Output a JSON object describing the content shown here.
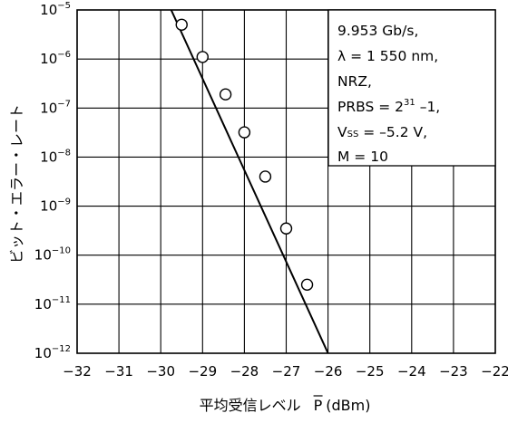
{
  "chart_data": {
    "type": "scatter",
    "xlabel": "平均受信レベル",
    "xlabel_symbol": "P",
    "xlabel_unit": "(dBm)",
    "ylabel": "ビット・エラー・レート",
    "xlim": [
      -32,
      -22
    ],
    "ylim_exponent": [
      -12,
      -5
    ],
    "y_scale": "log",
    "grid": true,
    "x_ticks": [
      "−32",
      "−31",
      "−30",
      "−29",
      "−28",
      "−27",
      "−26",
      "−25",
      "−24",
      "−23",
      "−22"
    ],
    "x_tick_values": [
      -32,
      -31,
      -30,
      -29,
      -28,
      -27,
      -26,
      -25,
      -24,
      -23,
      -22
    ],
    "y_tick_base": "10",
    "y_tick_exponents": [
      "−5",
      "−6",
      "−7",
      "−8",
      "−9",
      "−10",
      "−11",
      "−12"
    ],
    "y_tick_values": [
      -5,
      -6,
      -7,
      -8,
      -9,
      -10,
      -11,
      -12
    ],
    "series": [
      {
        "marker": "open-circle",
        "points": [
          {
            "x": -29.5,
            "y": 5e-06
          },
          {
            "x": -29.0,
            "y": 1.1e-06
          },
          {
            "x": -28.45,
            "y": 1.9e-07
          },
          {
            "x": -28.0,
            "y": 3.2e-08
          },
          {
            "x": -27.5,
            "y": 4e-09
          },
          {
            "x": -27.0,
            "y": 3.5e-10
          },
          {
            "x": -26.5,
            "y": 2.5e-11
          }
        ]
      }
    ],
    "fit_line": [
      {
        "x": -29.75,
        "y": 1e-05
      },
      {
        "x": -26.0,
        "y": 1e-12
      }
    ],
    "annotation": {
      "line1": "9.953 Gb/s,",
      "line2": "λ = 1 550 nm,",
      "line3": "NRZ,",
      "line4_base": "PRBS = 2",
      "line4_sup": "31",
      "line4_tail": " –1,",
      "line5_v": "V",
      "line5_sub": "SS",
      "line5_tail": " = –5.2 V,",
      "line6": "M = 10"
    }
  }
}
